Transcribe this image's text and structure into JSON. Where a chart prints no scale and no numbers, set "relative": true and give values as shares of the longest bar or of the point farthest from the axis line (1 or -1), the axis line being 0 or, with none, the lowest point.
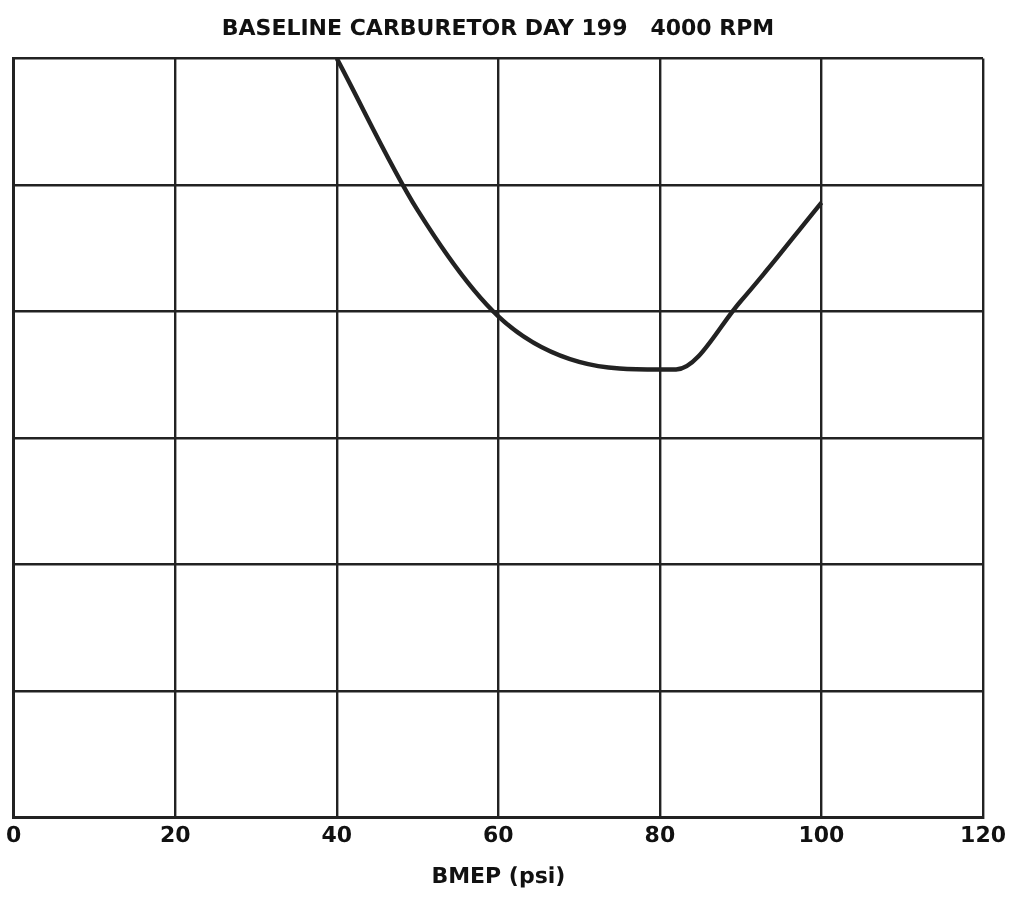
{
  "chart_data": {
    "type": "line",
    "title": "BASELINE CARBURETOR DAY 199   4000 RPM",
    "xlabel": "BMEP (psi)",
    "relative": true,
    "xlim": [
      0,
      120
    ],
    "xticks": [
      0,
      20,
      40,
      60,
      80,
      100,
      120
    ],
    "grid": true,
    "legend": false,
    "marker": "none",
    "line_style": "solid",
    "series": [
      {
        "color": "#222222",
        "x": [
          40,
          50,
          60,
          70,
          80,
          82,
          90,
          100
        ],
        "values": [
          1,
          0.8,
          0.66,
          0.6,
          0.59,
          0.59,
          0.68,
          0.81
        ]
      }
    ]
  }
}
